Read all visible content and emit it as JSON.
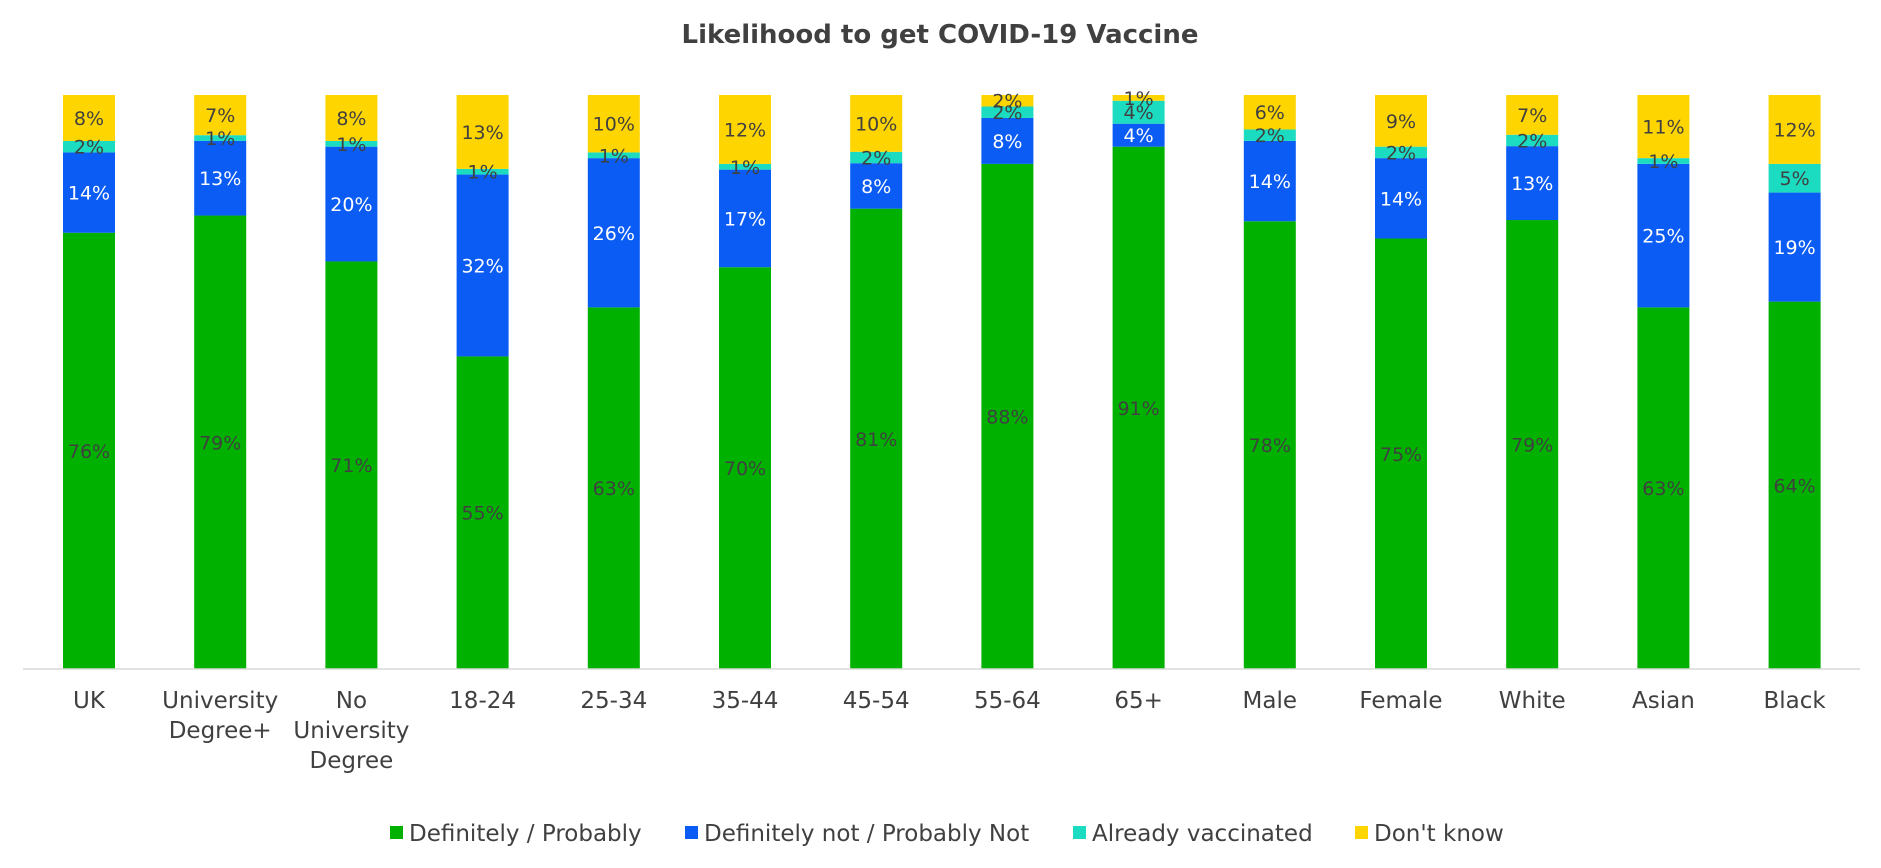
{
  "chart_data": {
    "type": "bar",
    "stacked": true,
    "title": "Likelihood to get COVID-19 Vaccine",
    "xlabel": "",
    "ylabel": "",
    "ylim": [
      0,
      100
    ],
    "grid": false,
    "legend_position": "bottom",
    "categories": [
      [
        "UK"
      ],
      [
        "University",
        "Degree+"
      ],
      [
        "No",
        "University",
        "Degree"
      ],
      [
        "18-24"
      ],
      [
        "25-34"
      ],
      [
        "35-44"
      ],
      [
        "45-54"
      ],
      [
        "55-64"
      ],
      [
        "65+"
      ],
      [
        "Male"
      ],
      [
        "Female"
      ],
      [
        "White"
      ],
      [
        "Asian"
      ],
      [
        "Black"
      ]
    ],
    "series": [
      {
        "name": "Definitely / Probably",
        "color": "#00B100",
        "label_color": "#404040",
        "values": [
          76,
          79,
          71,
          55,
          63,
          70,
          81,
          88,
          91,
          78,
          75,
          79,
          63,
          64
        ]
      },
      {
        "name": "Definitely not / Probably Not",
        "color": "#0A5CF5",
        "label_color": "#ffffff",
        "values": [
          14,
          13,
          20,
          32,
          26,
          17,
          8,
          8,
          4,
          14,
          14,
          13,
          25,
          19
        ]
      },
      {
        "name": "Already vaccinated",
        "color": "#1BDBC0",
        "label_color": "#404040",
        "values": [
          2,
          1,
          1,
          1,
          1,
          1,
          2,
          2,
          4,
          2,
          2,
          2,
          1,
          5
        ]
      },
      {
        "name": "Don't know",
        "color": "#FFD500",
        "label_color": "#404040",
        "values": [
          8,
          7,
          8,
          13,
          10,
          12,
          10,
          2,
          1,
          6,
          9,
          7,
          11,
          12
        ]
      }
    ],
    "value_suffix": "%"
  }
}
